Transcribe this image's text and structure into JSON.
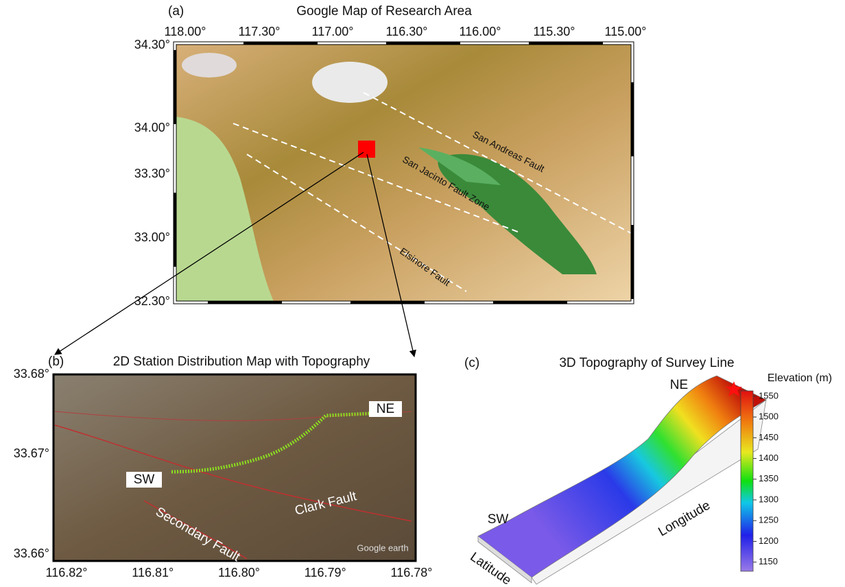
{
  "panel_a": {
    "label": "(a)",
    "title": "Google Map of Research Area",
    "x_ticks": [
      "118.00°",
      "117.30°",
      "117.00°",
      "116.30°",
      "116.00°",
      "115.30°",
      "115.00°"
    ],
    "y_ticks": [
      "34.30°",
      "34.00°",
      "33.30°",
      "33.00°",
      "32.30°"
    ],
    "annotations": [
      "San Andreas Fault",
      "San Jacinto Fault Zone",
      "Elsinore Fault"
    ]
  },
  "panel_b": {
    "label": "(b)",
    "title": "2D Station Distribution Map with Topography",
    "x_ticks": [
      "116.82°",
      "116.81°",
      "116.80°",
      "116.79°",
      "116.78°"
    ],
    "y_ticks": [
      "33.68°",
      "33.67°",
      "33.66°"
    ],
    "annotations": [
      "NE",
      "SW",
      "Clark Fault",
      "Secondary Fault"
    ],
    "watermark": "Google earth"
  },
  "panel_c": {
    "label": "(c)",
    "title": "3D Topography of Survey Line",
    "annotations": [
      "NE",
      "SW",
      "Longitude",
      "Latitude"
    ],
    "colorbar": {
      "title": "Elevation (m)",
      "clim": [
        1128,
        1563
      ],
      "ticks": [
        1150,
        1200,
        1250,
        1300,
        1350,
        1400,
        1450,
        1500,
        1550
      ]
    }
  }
}
